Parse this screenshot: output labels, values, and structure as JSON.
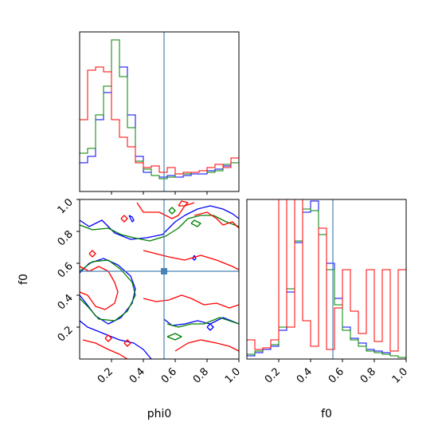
{
  "chart_data": [
    {
      "panel": "phi0-marginal",
      "type": "step-histogram",
      "xlim": [
        0,
        1
      ],
      "truth": 0.53,
      "bin_edges": [
        0.0,
        0.05,
        0.1,
        0.15,
        0.2,
        0.25,
        0.3,
        0.35,
        0.4,
        0.45,
        0.5,
        0.55,
        0.6,
        0.65,
        0.7,
        0.75,
        0.8,
        0.85,
        0.9,
        0.95,
        1.0
      ],
      "series": [
        {
          "color": "#0000ff",
          "values": [
            0.18,
            0.22,
            0.45,
            0.62,
            0.95,
            0.78,
            0.48,
            0.22,
            0.12,
            0.1,
            0.09,
            0.1,
            0.09,
            0.1,
            0.11,
            0.11,
            0.13,
            0.14,
            0.16,
            0.18
          ]
        },
        {
          "color": "#008000",
          "values": [
            0.24,
            0.27,
            0.48,
            0.66,
            0.95,
            0.72,
            0.4,
            0.19,
            0.14,
            0.1,
            0.08,
            0.09,
            0.11,
            0.11,
            0.12,
            0.13,
            0.12,
            0.13,
            0.17,
            0.18
          ]
        },
        {
          "color": "#ff0000",
          "values": [
            0.45,
            0.76,
            0.78,
            0.75,
            0.45,
            0.34,
            0.28,
            0.18,
            0.15,
            0.16,
            0.12,
            0.15,
            0.11,
            0.12,
            0.12,
            0.13,
            0.15,
            0.17,
            0.15,
            0.21
          ]
        }
      ]
    },
    {
      "panel": "f0-marginal",
      "type": "step-histogram",
      "xlim": [
        0,
        1
      ],
      "xticks": [
        "0.2",
        "0.4",
        "0.6",
        "0.8",
        "1.0"
      ],
      "xlabel": "f0",
      "truth": 0.54,
      "bin_edges": [
        0.0,
        0.05,
        0.1,
        0.15,
        0.2,
        0.25,
        0.3,
        0.35,
        0.4,
        0.45,
        0.5,
        0.55,
        0.6,
        0.65,
        0.7,
        0.75,
        0.8,
        0.85,
        0.9,
        0.95,
        1.0
      ],
      "series": [
        {
          "color": "#0000ff",
          "values": [
            0.02,
            0.04,
            0.06,
            0.08,
            0.18,
            0.42,
            0.73,
            0.92,
            0.99,
            0.82,
            0.6,
            0.38,
            0.2,
            0.13,
            0.1,
            0.06,
            0.05,
            0.04,
            0.02,
            0.01
          ]
        },
        {
          "color": "#008000",
          "values": [
            0.03,
            0.05,
            0.07,
            0.09,
            0.2,
            0.44,
            0.74,
            0.94,
            0.93,
            0.78,
            0.56,
            0.34,
            0.18,
            0.12,
            0.08,
            0.05,
            0.04,
            0.03,
            0.02,
            0.01
          ]
        },
        {
          "color": "#ff0000",
          "values": [
            0.12,
            0.06,
            0.07,
            0.12,
            1.05,
            0.2,
            1.05,
            0.24,
            0.08,
            0.82,
            0.06,
            0.32,
            0.56,
            0.3,
            0.16,
            0.56,
            0.11,
            0.56,
            0.05,
            0.56
          ]
        }
      ]
    },
    {
      "panel": "phi0-f0-joint",
      "type": "contour",
      "xlim": [
        0,
        1
      ],
      "ylim": [
        0,
        1
      ],
      "xticks": [
        "0.2",
        "0.4",
        "0.6",
        "0.8",
        "1.0"
      ],
      "yticks": [
        "0.2",
        "0.4",
        "0.6",
        "0.8",
        "1.0"
      ],
      "xlabel": "phi0",
      "ylabel": "f0",
      "truth": {
        "x": 0.53,
        "y": 0.55
      },
      "contours": [
        {
          "color": "#0000ff",
          "paths": [
            [
              [
                0.0,
                0.54
              ],
              [
                0.06,
                0.6
              ],
              [
                0.15,
                0.63
              ],
              [
                0.24,
                0.59
              ],
              [
                0.32,
                0.52
              ],
              [
                0.35,
                0.44
              ],
              [
                0.33,
                0.35
              ],
              [
                0.26,
                0.26
              ],
              [
                0.18,
                0.22
              ],
              [
                0.1,
                0.27
              ],
              [
                0.04,
                0.35
              ],
              [
                0.0,
                0.4
              ]
            ],
            [
              [
                0.0,
                0.87
              ],
              [
                0.06,
                0.83
              ],
              [
                0.14,
                0.87
              ],
              [
                0.22,
                0.79
              ],
              [
                0.32,
                0.75
              ],
              [
                0.42,
                0.76
              ],
              [
                0.52,
                0.78
              ],
              [
                0.6,
                0.86
              ],
              [
                0.66,
                0.9
              ],
              [
                0.74,
                0.94
              ],
              [
                0.82,
                0.96
              ],
              [
                0.9,
                0.94
              ],
              [
                0.96,
                0.91
              ],
              [
                1.0,
                0.88
              ]
            ],
            [
              [
                0.0,
                0.24
              ],
              [
                0.05,
                0.2
              ],
              [
                0.15,
                0.16
              ],
              [
                0.25,
                0.12
              ],
              [
                0.34,
                0.1
              ],
              [
                0.4,
                0.06
              ],
              [
                0.45,
                0.0
              ]
            ],
            [
              [
                0.53,
                0.25
              ],
              [
                0.58,
                0.21
              ],
              [
                0.66,
                0.22
              ],
              [
                0.74,
                0.24
              ],
              [
                0.82,
                0.22
              ],
              [
                0.9,
                0.26
              ],
              [
                1.0,
                0.22
              ]
            ],
            [
              [
                0.8,
                0.2
              ],
              [
                0.82,
                0.18
              ],
              [
                0.84,
                0.2
              ],
              [
                0.82,
                0.22
              ],
              [
                0.8,
                0.2
              ]
            ],
            [
              [
                0.31,
                0.9
              ],
              [
                0.33,
                0.89
              ],
              [
                0.34,
                0.87
              ],
              [
                0.33,
                0.86
              ],
              [
                0.32,
                0.88
              ],
              [
                0.31,
                0.9
              ]
            ],
            [
              [
                0.72,
                0.65
              ],
              [
                0.73,
                0.63
              ],
              [
                0.72,
                0.62
              ],
              [
                0.71,
                0.63
              ],
              [
                0.72,
                0.65
              ]
            ]
          ]
        },
        {
          "color": "#008000",
          "paths": [
            [
              [
                0.0,
                0.55
              ],
              [
                0.08,
                0.61
              ],
              [
                0.18,
                0.62
              ],
              [
                0.26,
                0.56
              ],
              [
                0.33,
                0.48
              ],
              [
                0.35,
                0.4
              ],
              [
                0.3,
                0.3
              ],
              [
                0.22,
                0.24
              ],
              [
                0.12,
                0.25
              ],
              [
                0.05,
                0.33
              ],
              [
                0.0,
                0.38
              ]
            ],
            [
              [
                0.0,
                0.84
              ],
              [
                0.08,
                0.81
              ],
              [
                0.18,
                0.82
              ],
              [
                0.26,
                0.78
              ],
              [
                0.34,
                0.76
              ],
              [
                0.44,
                0.74
              ],
              [
                0.54,
                0.77
              ],
              [
                0.62,
                0.82
              ],
              [
                0.68,
                0.88
              ],
              [
                0.76,
                0.9
              ],
              [
                0.84,
                0.9
              ],
              [
                0.92,
                0.86
              ],
              [
                1.0,
                0.83
              ]
            ],
            [
              [
                0.55,
                0.22
              ],
              [
                0.62,
                0.2
              ],
              [
                0.7,
                0.22
              ],
              [
                0.78,
                0.22
              ],
              [
                0.88,
                0.26
              ],
              [
                1.0,
                0.22
              ]
            ],
            [
              [
                0.55,
                0.14
              ],
              [
                0.6,
                0.12
              ],
              [
                0.64,
                0.14
              ],
              [
                0.6,
                0.16
              ],
              [
                0.55,
                0.14
              ]
            ],
            [
              [
                0.56,
                0.93
              ],
              [
                0.58,
                0.91
              ],
              [
                0.6,
                0.93
              ],
              [
                0.58,
                0.95
              ],
              [
                0.56,
                0.93
              ]
            ],
            [
              [
                0.7,
                0.85
              ],
              [
                0.74,
                0.83
              ],
              [
                0.76,
                0.85
              ],
              [
                0.72,
                0.87
              ],
              [
                0.7,
                0.85
              ]
            ]
          ]
        },
        {
          "color": "#ff0000",
          "paths": [
            [
              [
                0.0,
                0.58
              ],
              [
                0.06,
                0.55
              ],
              [
                0.12,
                0.58
              ],
              [
                0.18,
                0.55
              ],
              [
                0.22,
                0.48
              ],
              [
                0.24,
                0.42
              ],
              [
                0.22,
                0.35
              ],
              [
                0.16,
                0.31
              ],
              [
                0.1,
                0.33
              ],
              [
                0.05,
                0.4
              ],
              [
                0.0,
                0.42
              ]
            ],
            [
              [
                0.36,
                0.98
              ],
              [
                0.4,
                0.92
              ],
              [
                0.5,
                0.92
              ],
              [
                0.58,
                0.88
              ],
              [
                0.62,
                0.9
              ],
              [
                0.66,
                0.96
              ],
              [
                0.72,
                0.98
              ]
            ],
            [
              [
                0.4,
                0.68
              ],
              [
                0.48,
                0.66
              ],
              [
                0.56,
                0.64
              ],
              [
                0.66,
                0.62
              ],
              [
                0.76,
                0.65
              ],
              [
                0.86,
                0.62
              ],
              [
                0.96,
                0.58
              ],
              [
                1.0,
                0.56
              ]
            ],
            [
              [
                0.4,
                0.38
              ],
              [
                0.48,
                0.36
              ],
              [
                0.56,
                0.37
              ],
              [
                0.64,
                0.4
              ],
              [
                0.7,
                0.38
              ],
              [
                0.78,
                0.34
              ],
              [
                0.86,
                0.35
              ],
              [
                0.94,
                0.32
              ],
              [
                1.0,
                0.34
              ]
            ],
            [
              [
                0.02,
                0.12
              ],
              [
                0.1,
                0.1
              ],
              [
                0.18,
                0.06
              ],
              [
                0.25,
                0.03
              ],
              [
                0.3,
                0.0
              ]
            ],
            [
              [
                0.6,
                0.05
              ],
              [
                0.68,
                0.1
              ],
              [
                0.76,
                0.12
              ],
              [
                0.86,
                0.1
              ],
              [
                0.94,
                0.08
              ],
              [
                1.0,
                0.05
              ]
            ],
            [
              [
                0.72,
                0.9
              ],
              [
                0.8,
                0.92
              ],
              [
                0.86,
                0.88
              ],
              [
                0.9,
                0.84
              ],
              [
                0.96,
                0.86
              ],
              [
                1.0,
                0.82
              ]
            ],
            [
              [
                0.06,
                0.66
              ],
              [
                0.08,
                0.64
              ],
              [
                0.1,
                0.66
              ],
              [
                0.08,
                0.68
              ],
              [
                0.06,
                0.66
              ]
            ],
            [
              [
                0.26,
                0.88
              ],
              [
                0.28,
                0.86
              ],
              [
                0.3,
                0.88
              ],
              [
                0.28,
                0.9
              ],
              [
                0.26,
                0.88
              ]
            ],
            [
              [
                0.16,
                0.13
              ],
              [
                0.18,
                0.11
              ],
              [
                0.2,
                0.13
              ],
              [
                0.18,
                0.15
              ],
              [
                0.16,
                0.13
              ]
            ],
            [
              [
                0.28,
                0.1
              ],
              [
                0.3,
                0.08
              ],
              [
                0.32,
                0.1
              ],
              [
                0.3,
                0.12
              ],
              [
                0.28,
                0.1
              ]
            ],
            [
              [
                0.62,
                0.96
              ],
              [
                0.66,
                0.96
              ],
              [
                0.68,
                0.98
              ],
              [
                0.64,
                0.99
              ],
              [
                0.62,
                0.96
              ]
            ]
          ]
        }
      ]
    }
  ],
  "styles": {
    "truth_color": "#4682b4",
    "axis_color": "#000000"
  }
}
